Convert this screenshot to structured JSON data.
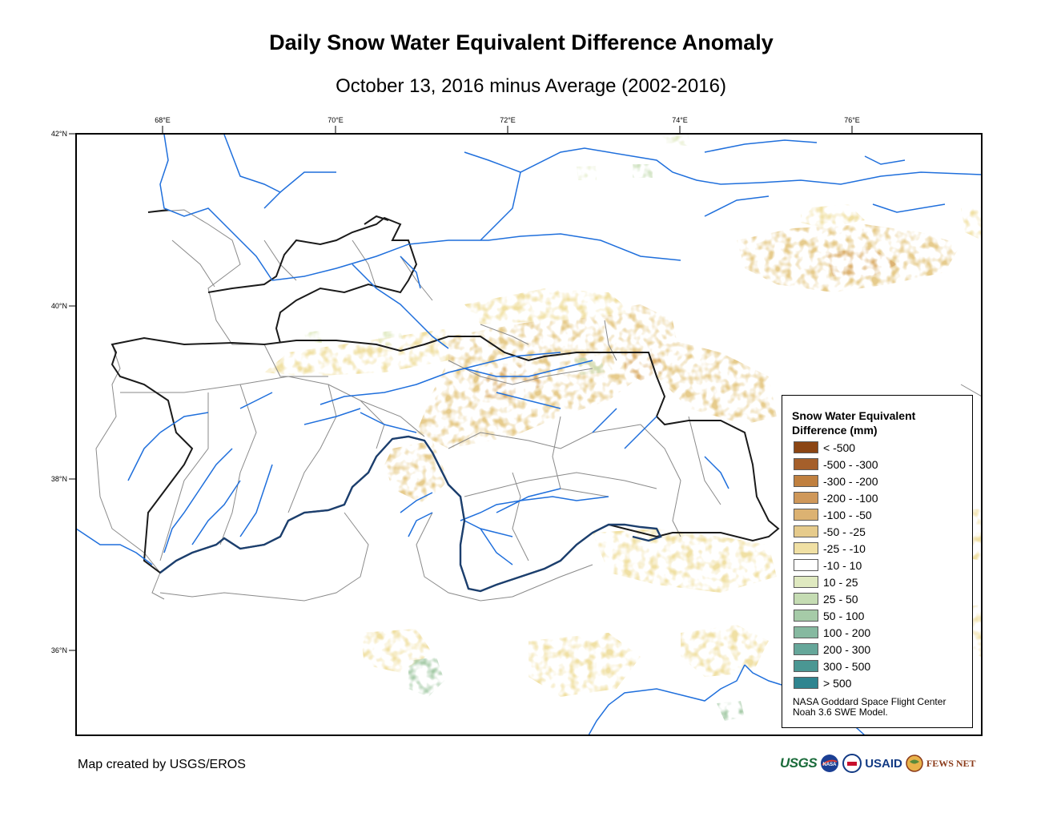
{
  "title": "Daily Snow Water Equivalent Difference Anomaly",
  "subtitle": "October 13, 2016 minus Average (2002-2016)",
  "axes": {
    "lon_ticks": [
      "68°E",
      "70°E",
      "72°E",
      "74°E",
      "76°E"
    ],
    "lat_ticks": [
      "42°N",
      "40°N",
      "38°N",
      "36°N"
    ]
  },
  "legend": {
    "title_line1": "Snow Water Equivalent",
    "title_line2": "Difference (mm)",
    "items": [
      {
        "label": "< -500",
        "color": "#8b4513"
      },
      {
        "label": "-500 - -300",
        "color": "#a55f2a"
      },
      {
        "label": "-300 - -200",
        "color": "#c0803f"
      },
      {
        "label": "-200 - -100",
        "color": "#cf985a"
      },
      {
        "label": "-100 - -50",
        "color": "#dcb272"
      },
      {
        "label": "-50 - -25",
        "color": "#e6cb8c"
      },
      {
        "label": "-25 - -10",
        "color": "#f0e0a4"
      },
      {
        "label": "-10 - 10",
        "color": "#ffffff"
      },
      {
        "label": "10 - 25",
        "color": "#dfe9c0"
      },
      {
        "label": "25 - 50",
        "color": "#c5dcb3"
      },
      {
        "label": "50 - 100",
        "color": "#a6cba8"
      },
      {
        "label": "100 - 200",
        "color": "#86b9a0"
      },
      {
        "label": "200 - 300",
        "color": "#66a79a"
      },
      {
        "label": "300 - 500",
        "color": "#4a9793"
      },
      {
        "label": "> 500",
        "color": "#2f8590"
      }
    ],
    "credit_line1": "NASA Goddard Space Flight Center",
    "credit_line2": "Noah 3.6 SWE Model."
  },
  "footer": {
    "made_by": "Map created by USGS/EROS",
    "logos": [
      "USGS",
      "NASA",
      "USAID",
      "FEWS NET"
    ]
  },
  "colors": {
    "river": "#1f6fdc",
    "national_border": "#1a1a1a",
    "province_border": "#8a8a8a",
    "amu_darya": "#1c3f6e"
  }
}
